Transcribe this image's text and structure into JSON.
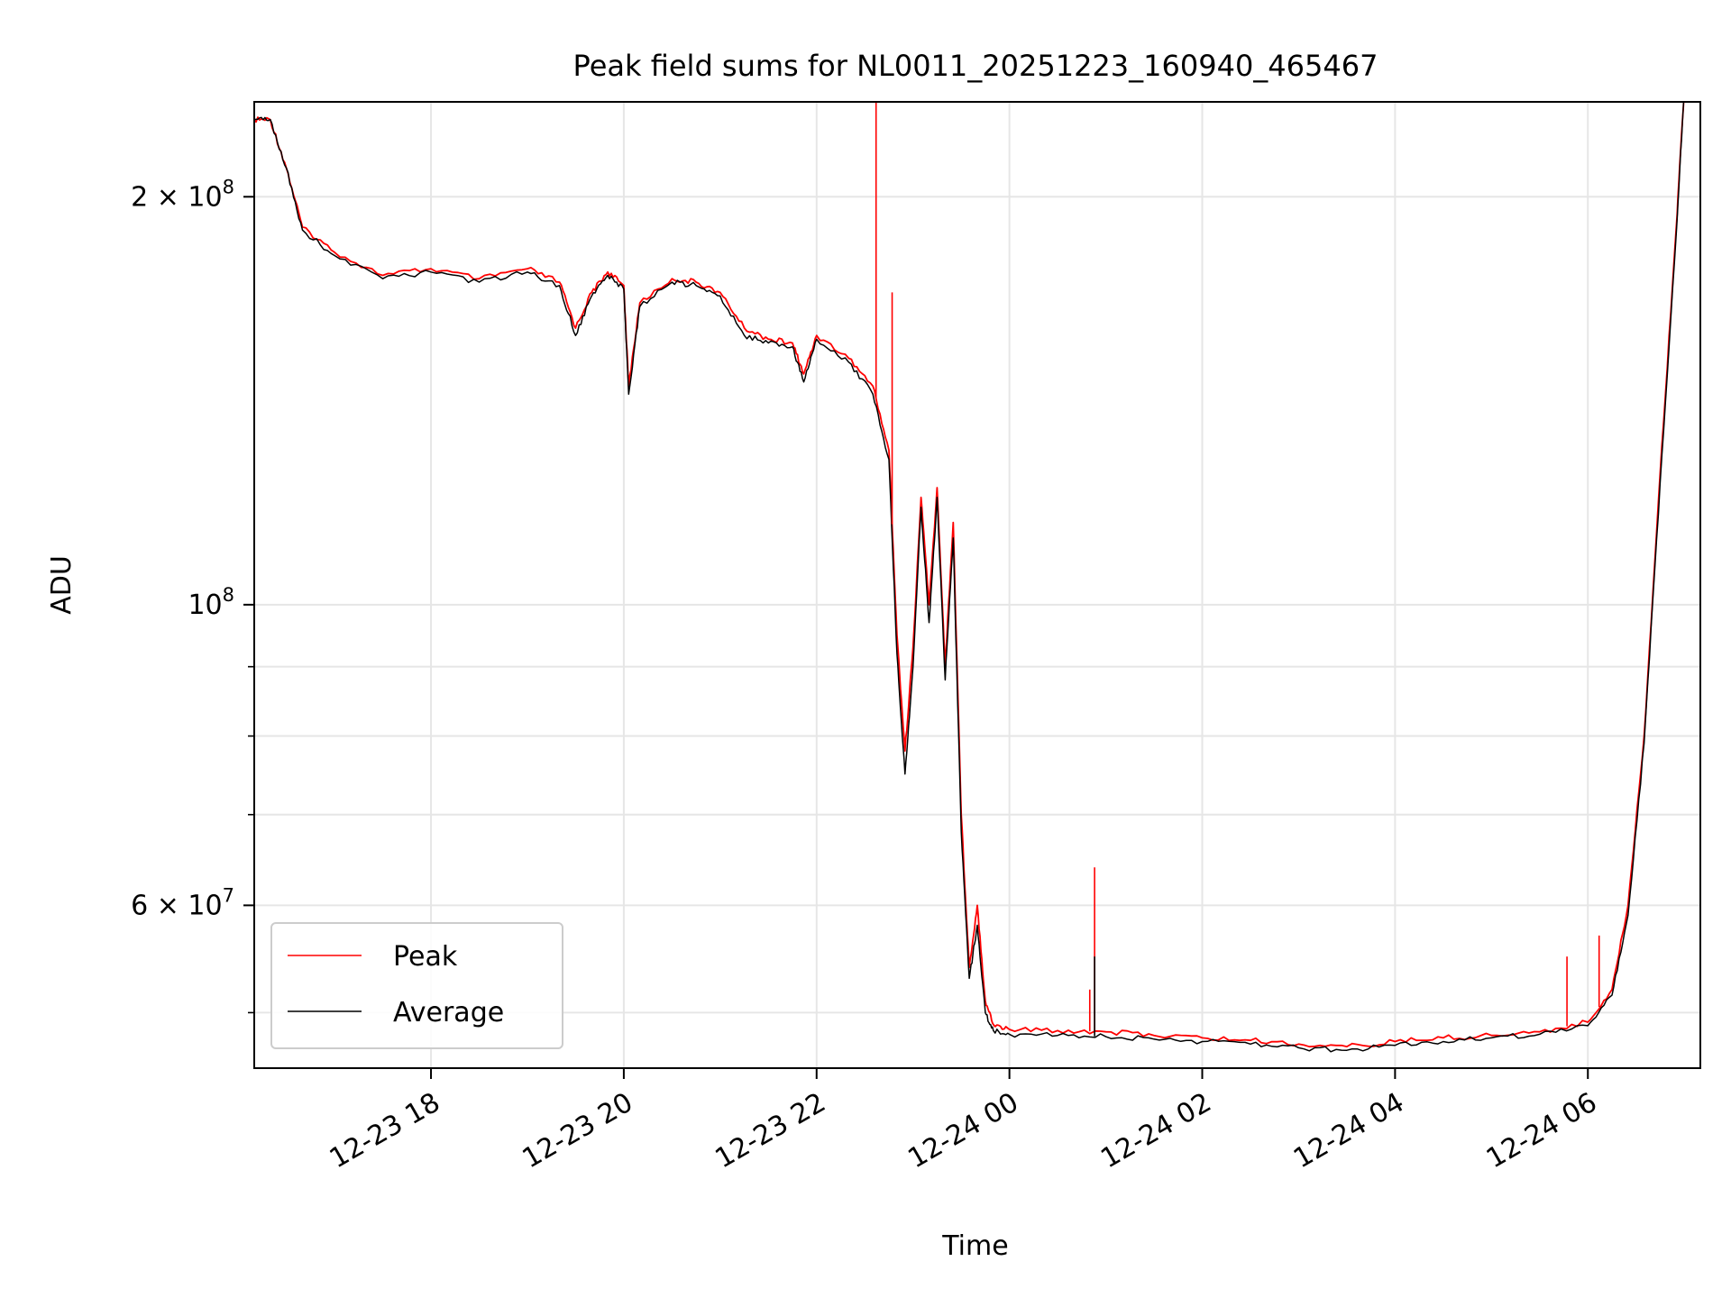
{
  "chart_data": {
    "type": "line",
    "title": "Peak field sums for NL0011_20251223_160940_465467",
    "xlabel": "Time",
    "ylabel": "ADU",
    "y_scale": "log",
    "grid": true,
    "legend_position": "lower-left",
    "xlim": [
      "2025-12-23T16:10",
      "2025-12-24T07:10"
    ],
    "ylim": [
      45500000,
      235000000
    ],
    "x_ticks": [
      {
        "value": "2025-12-23T18:00",
        "label": "12-23 18"
      },
      {
        "value": "2025-12-23T20:00",
        "label": "12-23 20"
      },
      {
        "value": "2025-12-23T22:00",
        "label": "12-23 22"
      },
      {
        "value": "2025-12-24T00:00",
        "label": "12-24 00"
      },
      {
        "value": "2025-12-24T02:00",
        "label": "12-24 02"
      },
      {
        "value": "2025-12-24T04:00",
        "label": "12-24 04"
      },
      {
        "value": "2025-12-24T06:00",
        "label": "12-24 06"
      }
    ],
    "y_ticks_major": [
      {
        "value": 200000000,
        "mantissa": "2",
        "exponent": "8"
      },
      {
        "value": 100000000,
        "mantissa": "",
        "exponent": "8"
      },
      {
        "value": 60000000,
        "mantissa": "6",
        "exponent": "7"
      }
    ],
    "y_ticks_minor": [
      50000000,
      70000000,
      80000000,
      90000000
    ],
    "x": [
      "2025-12-23T16:10",
      "2025-12-23T16:20",
      "2025-12-23T16:30",
      "2025-12-23T16:40",
      "2025-12-23T17:00",
      "2025-12-23T17:30",
      "2025-12-23T18:00",
      "2025-12-23T18:30",
      "2025-12-23T19:00",
      "2025-12-23T19:20",
      "2025-12-23T19:30",
      "2025-12-23T19:40",
      "2025-12-23T19:50",
      "2025-12-23T20:00",
      "2025-12-23T20:03",
      "2025-12-23T20:10",
      "2025-12-23T20:30",
      "2025-12-23T20:45",
      "2025-12-23T21:00",
      "2025-12-23T21:15",
      "2025-12-23T21:30",
      "2025-12-23T21:45",
      "2025-12-23T21:52",
      "2025-12-23T22:00",
      "2025-12-23T22:20",
      "2025-12-23T22:35",
      "2025-12-23T22:45",
      "2025-12-23T22:50",
      "2025-12-23T22:55",
      "2025-12-23T23:00",
      "2025-12-23T23:05",
      "2025-12-23T23:10",
      "2025-12-23T23:15",
      "2025-12-23T23:20",
      "2025-12-23T23:25",
      "2025-12-23T23:30",
      "2025-12-23T23:35",
      "2025-12-23T23:40",
      "2025-12-23T23:45",
      "2025-12-23T23:50",
      "2025-12-24T00:00",
      "2025-12-24T00:30",
      "2025-12-24T01:00",
      "2025-12-24T01:30",
      "2025-12-24T02:00",
      "2025-12-24T02:30",
      "2025-12-24T03:00",
      "2025-12-24T03:30",
      "2025-12-24T04:00",
      "2025-12-24T04:30",
      "2025-12-24T05:00",
      "2025-12-24T05:30",
      "2025-12-24T06:00",
      "2025-12-24T06:15",
      "2025-12-24T06:25",
      "2025-12-24T06:35",
      "2025-12-24T06:45",
      "2025-12-24T06:55",
      "2025-12-24T07:00"
    ],
    "series": [
      {
        "name": "Peak",
        "color": "#ff0000",
        "values": [
          228000000,
          228000000,
          210000000,
          190000000,
          182000000,
          175000000,
          177000000,
          174000000,
          177000000,
          173000000,
          160000000,
          170000000,
          176000000,
          172000000,
          145000000,
          167000000,
          174000000,
          173000000,
          170000000,
          160000000,
          157000000,
          156000000,
          148000000,
          158000000,
          152000000,
          145000000,
          130000000,
          95000000,
          78000000,
          93000000,
          120000000,
          100000000,
          122000000,
          90000000,
          115000000,
          70000000,
          54000000,
          60000000,
          51000000,
          49000000,
          48600000,
          48500000,
          48400000,
          48100000,
          47900000,
          47700000,
          47400000,
          47200000,
          47600000,
          47900000,
          48100000,
          48400000,
          49200000,
          52000000,
          60000000,
          80000000,
          125000000,
          190000000,
          240000000
        ]
      },
      {
        "name": "Average",
        "color": "#000000",
        "values": [
          228000000,
          228000000,
          210000000,
          189000000,
          181000000,
          174000000,
          176000000,
          173000000,
          176000000,
          172000000,
          158000000,
          169000000,
          175000000,
          171000000,
          143000000,
          166000000,
          173000000,
          172000000,
          169000000,
          158000000,
          156000000,
          155000000,
          146000000,
          157000000,
          151000000,
          143000000,
          128000000,
          92000000,
          75000000,
          90000000,
          118000000,
          97000000,
          120000000,
          88000000,
          112000000,
          68000000,
          53000000,
          58000000,
          50000000,
          48500000,
          48200000,
          48100000,
          48000000,
          47800000,
          47600000,
          47400000,
          47100000,
          46900000,
          47300000,
          47600000,
          47900000,
          48200000,
          48900000,
          51500000,
          59000000,
          79000000,
          123000000,
          188000000,
          240000000
        ]
      }
    ],
    "spikes": [
      {
        "series": "Peak",
        "x": "2025-12-23T22:37",
        "y": 235000000
      },
      {
        "series": "Peak",
        "x": "2025-12-23T22:47",
        "y": 170000000
      },
      {
        "series": "Peak",
        "x": "2025-12-24T00:53",
        "y": 64000000
      },
      {
        "series": "Peak",
        "x": "2025-12-24T00:50",
        "y": 52000000
      },
      {
        "series": "Peak",
        "x": "2025-12-24T05:47",
        "y": 55000000
      },
      {
        "series": "Peak",
        "x": "2025-12-24T06:07",
        "y": 57000000
      },
      {
        "series": "Average",
        "x": "2025-12-24T00:53",
        "y": 55000000
      }
    ]
  }
}
